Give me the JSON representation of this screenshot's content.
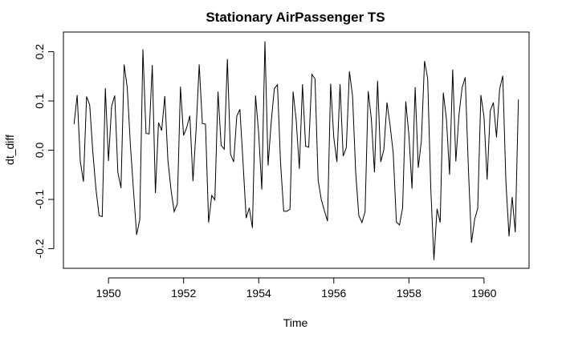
{
  "chart_data": {
    "type": "line",
    "title": "Stationary AirPassenger TS",
    "xlabel": "Time",
    "ylabel": "dt_diff",
    "xlim": [
      1948.8,
      1961.2
    ],
    "ylim": [
      -0.24,
      0.24
    ],
    "x_ticks": [
      1950,
      1952,
      1954,
      1956,
      1958,
      1960
    ],
    "x_tick_labels": [
      "1950",
      "1952",
      "1954",
      "1956",
      "1958",
      "1960"
    ],
    "y_ticks": [
      -0.2,
      -0.1,
      0.0,
      0.1,
      0.2
    ],
    "y_tick_labels": [
      "-0.2",
      "-0.1",
      "0.0",
      "0.1",
      "0.2"
    ],
    "grid": false,
    "series": [
      {
        "x_start": 1949.083,
        "x_step": 0.08333,
        "values": [
          0.053,
          0.112,
          -0.023,
          -0.064,
          0.109,
          0.092,
          -0.004,
          -0.079,
          -0.133,
          -0.135,
          0.126,
          -0.022,
          0.089,
          0.111,
          -0.045,
          -0.077,
          0.174,
          0.127,
          0.011,
          -0.082,
          -0.172,
          -0.141,
          0.205,
          0.034,
          0.033,
          0.173,
          -0.087,
          0.056,
          0.04,
          0.11,
          -0.021,
          -0.081,
          -0.125,
          -0.109,
          0.129,
          0.03,
          0.046,
          0.07,
          -0.063,
          0.042,
          0.174,
          0.054,
          0.053,
          -0.147,
          -0.092,
          -0.101,
          0.119,
          0.01,
          0.002,
          0.185,
          -0.008,
          -0.024,
          0.069,
          0.083,
          -0.025,
          -0.138,
          -0.117,
          -0.158,
          0.111,
          0.034,
          -0.08,
          0.221,
          -0.031,
          0.057,
          0.125,
          0.133,
          -0.027,
          -0.124,
          -0.124,
          -0.12,
          0.119,
          0.06,
          -0.038,
          0.134,
          0.008,
          0.006,
          0.154,
          0.145,
          -0.061,
          -0.1,
          -0.123,
          -0.144,
          0.135,
          0.026,
          -0.024,
          0.134,
          -0.012,
          0.005,
          0.16,
          0.11,
          -0.045,
          -0.133,
          -0.147,
          -0.125,
          0.12,
          0.064,
          -0.045,
          0.141,
          -0.024,
          0.001,
          0.097,
          0.05,
          -0.006,
          -0.146,
          -0.152,
          -0.117,
          0.099,
          0.031,
          -0.078,
          0.128,
          -0.036,
          0.02,
          0.181,
          0.146,
          -0.078,
          -0.223,
          -0.119,
          -0.147,
          0.117,
          0.063,
          -0.05,
          0.164,
          -0.023,
          0.071,
          0.127,
          0.148,
          -0.035,
          -0.188,
          -0.141,
          -0.118,
          0.112,
          0.068,
          -0.06,
          0.08,
          0.097,
          0.026,
          0.124,
          0.151,
          -0.064,
          -0.175,
          -0.095,
          -0.167,
          0.103
        ]
      }
    ]
  }
}
